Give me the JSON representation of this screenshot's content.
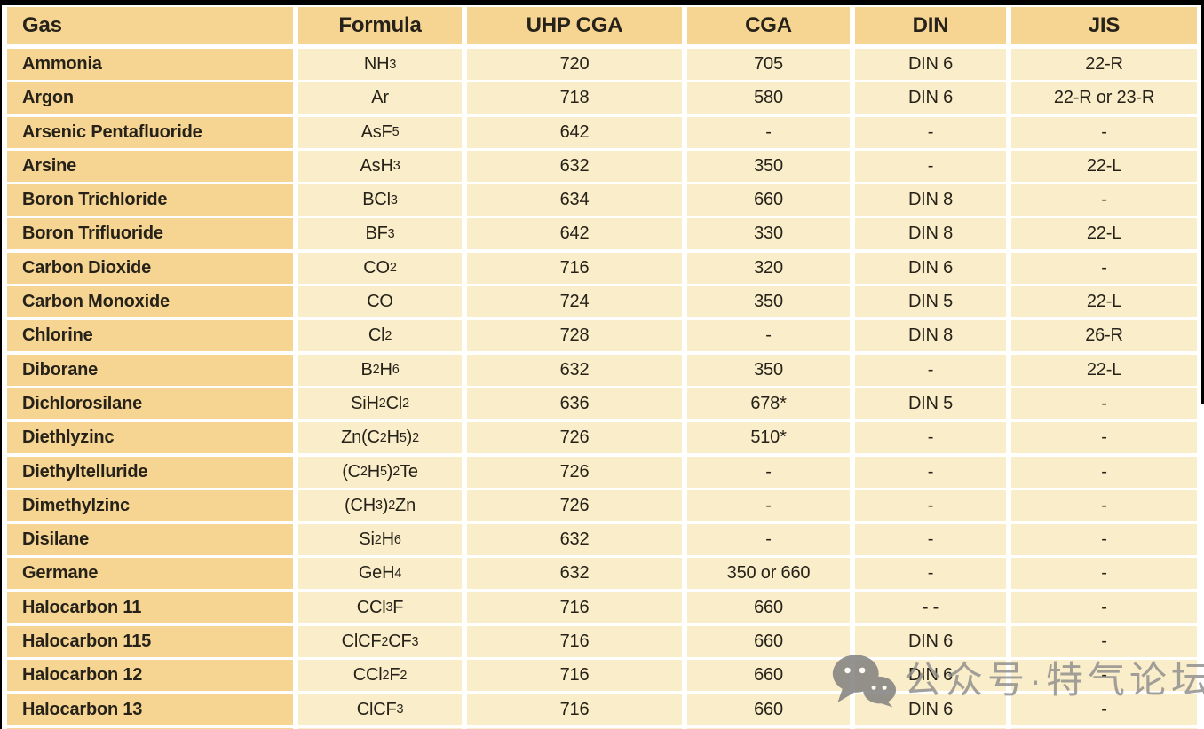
{
  "frame": {
    "top_border_color": "#010101",
    "left_border_color": "#010101",
    "right_border_color": "#010101",
    "background": "#ffffff"
  },
  "colors": {
    "header_bg": "#f6d592",
    "gas_column_bg": "#f6d592",
    "data_cell_bg": "#faedc9",
    "text": "#262219",
    "watermark_gray": "#8d8d8d"
  },
  "table": {
    "columns": [
      {
        "key": "gas",
        "label": "Gas",
        "align": "left"
      },
      {
        "key": "formula",
        "label": "Formula",
        "align": "center"
      },
      {
        "key": "uhp_cga",
        "label": "UHP CGA",
        "align": "center"
      },
      {
        "key": "cga",
        "label": "CGA",
        "align": "center"
      },
      {
        "key": "din",
        "label": "DIN",
        "align": "center"
      },
      {
        "key": "jis",
        "label": "JIS",
        "align": "center"
      }
    ],
    "rows": [
      {
        "gas": "Ammonia",
        "formula": "NH_3",
        "uhp_cga": "720",
        "cga": "705",
        "din": "DIN 6",
        "jis": "22-R"
      },
      {
        "gas": "Argon",
        "formula": "Ar",
        "uhp_cga": "718",
        "cga": "580",
        "din": "DIN 6",
        "jis": "22-R or 23-R"
      },
      {
        "gas": "Arsenic Pentafluoride",
        "formula": "AsF_5",
        "uhp_cga": "642",
        "cga": "-",
        "din": "-",
        "jis": "-"
      },
      {
        "gas": "Arsine",
        "formula": "AsH_3",
        "uhp_cga": "632",
        "cga": "350",
        "din": "-",
        "jis": "22-L"
      },
      {
        "gas": "Boron Trichloride",
        "formula": "BCl_3",
        "uhp_cga": "634",
        "cga": "660",
        "din": "DIN 8",
        "jis": "-"
      },
      {
        "gas": "Boron Trifluoride",
        "formula": "BF_3",
        "uhp_cga": "642",
        "cga": "330",
        "din": "DIN 8",
        "jis": "22-L"
      },
      {
        "gas": "Carbon Dioxide",
        "formula": "CO_2",
        "uhp_cga": "716",
        "cga": "320",
        "din": "DIN 6",
        "jis": "-"
      },
      {
        "gas": "Carbon Monoxide",
        "formula": "CO",
        "uhp_cga": "724",
        "cga": "350",
        "din": "DIN 5",
        "jis": "22-L"
      },
      {
        "gas": "Chlorine",
        "formula": "Cl_2",
        "uhp_cga": "728",
        "cga": "-",
        "din": "DIN 8",
        "jis": "26-R"
      },
      {
        "gas": "Diborane",
        "formula": "B_2H_6",
        "uhp_cga": "632",
        "cga": "350",
        "din": "-",
        "jis": "22-L"
      },
      {
        "gas": "Dichlorosilane",
        "formula": "SiH_2Cl_2",
        "uhp_cga": "636",
        "cga": "678*",
        "din": "DIN 5",
        "jis": "-"
      },
      {
        "gas": "Diethlyzinc",
        "formula": "Zn(C_2H_5)_2",
        "uhp_cga": "726",
        "cga": "510*",
        "din": "-",
        "jis": "-"
      },
      {
        "gas": "Diethyltelluride",
        "formula": "(C_2H_5)_2Te",
        "uhp_cga": "726",
        "cga": "-",
        "din": "-",
        "jis": "-"
      },
      {
        "gas": "Dimethylzinc",
        "formula": "(CH_3)_2Zn",
        "uhp_cga": "726",
        "cga": "-",
        "din": "-",
        "jis": "-"
      },
      {
        "gas": "Disilane",
        "formula": "Si_2H_6",
        "uhp_cga": "632",
        "cga": "-",
        "din": "-",
        "jis": "-"
      },
      {
        "gas": "Germane",
        "formula": "GeH_4",
        "uhp_cga": "632",
        "cga": "350 or 660",
        "din": "-",
        "jis": "-"
      },
      {
        "gas": "Halocarbon 11",
        "formula": "CCl_3F",
        "uhp_cga": "716",
        "cga": "660",
        "din": "- -",
        "jis": "-"
      },
      {
        "gas": "Halocarbon 115",
        "formula": "ClCF_2CF_3",
        "uhp_cga": "716",
        "cga": "660",
        "din": "DIN 6",
        "jis": "-"
      },
      {
        "gas": "Halocarbon 12",
        "formula": "CCl_2F_2",
        "uhp_cga": "716",
        "cga": "660",
        "din": "DIN 6",
        "jis": "-"
      },
      {
        "gas": "Halocarbon 13",
        "formula": "ClCF_3",
        "uhp_cga": "716",
        "cga": "660",
        "din": "DIN 6",
        "jis": "-"
      }
    ],
    "partial_next_row_visible": true
  },
  "watermark": {
    "icon": "wechat-icon",
    "text": "公众号·特气论坛"
  }
}
